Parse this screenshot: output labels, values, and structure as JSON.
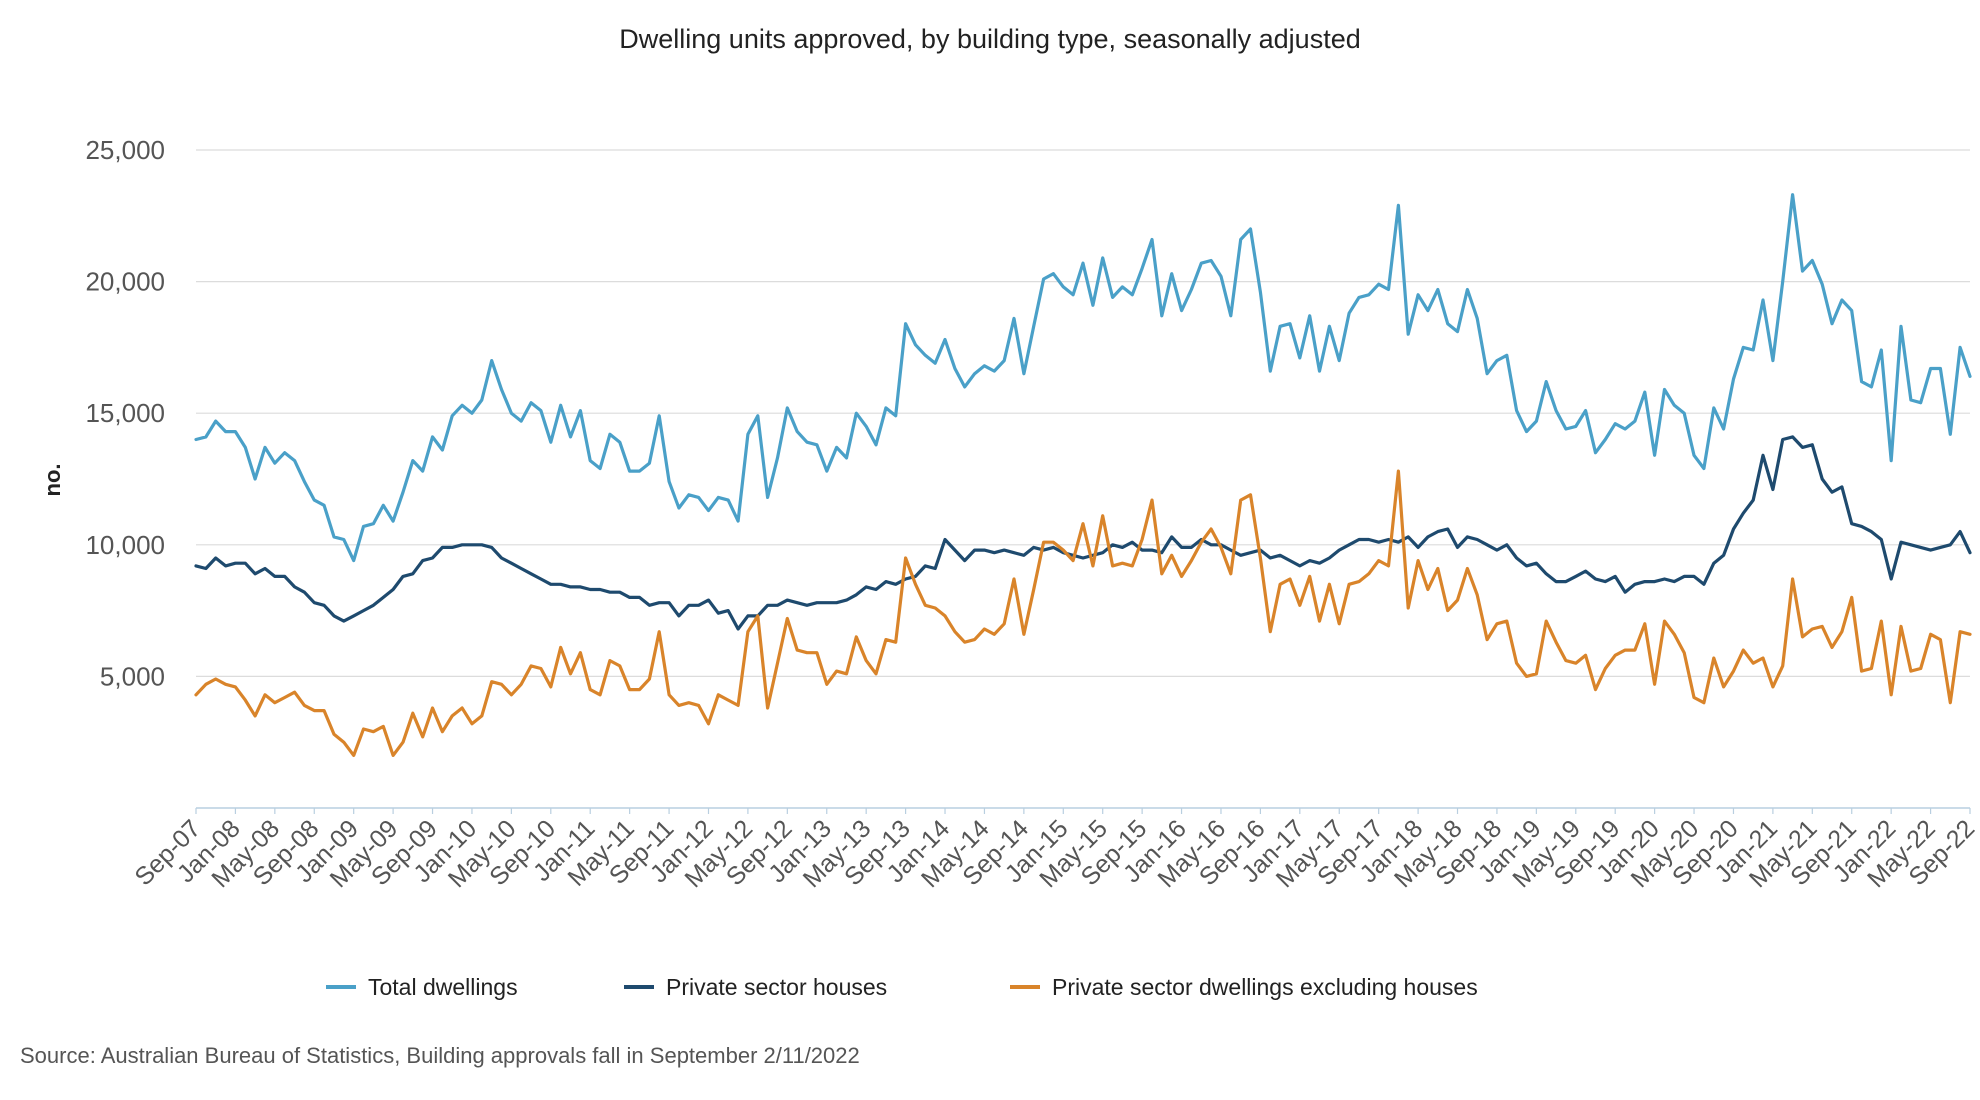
{
  "chart_data": {
    "type": "line",
    "title": "Dwelling units approved, by building type, seasonally adjusted",
    "ylabel": "no.",
    "xlabel": "",
    "ylim": [
      0,
      25000
    ],
    "yticks": [
      5000,
      10000,
      15000,
      20000,
      25000
    ],
    "ytick_labels": [
      "5,000",
      "10,000",
      "15,000",
      "20,000",
      "25,000"
    ],
    "x_start": "Sep-07",
    "x_end": "Sep-22",
    "xtick_labels": [
      "Sep-07",
      "Jan-08",
      "May-08",
      "Sep-08",
      "Jan-09",
      "May-09",
      "Sep-09",
      "Jan-10",
      "May-10",
      "Sep-10",
      "Jan-11",
      "May-11",
      "Sep-11",
      "Jan-12",
      "May-12",
      "Sep-12",
      "Jan-13",
      "May-13",
      "Sep-13",
      "Jan-14",
      "May-14",
      "Sep-14",
      "Jan-15",
      "May-15",
      "Sep-15",
      "Jan-16",
      "May-16",
      "Sep-16",
      "Jan-17",
      "May-17",
      "Sep-17",
      "Jan-18",
      "May-18",
      "Sep-18",
      "Jan-19",
      "May-19",
      "Sep-19",
      "Jan-20",
      "May-20",
      "Sep-20",
      "Jan-21",
      "May-21",
      "Sep-21",
      "Jan-22",
      "May-22",
      "Sep-22"
    ],
    "grid": true,
    "legend_position": "bottom",
    "series": [
      {
        "name": "Total dwellings",
        "color": "#4aa0c8",
        "values": [
          14000,
          14100,
          14700,
          14300,
          14300,
          13700,
          12500,
          13700,
          13100,
          13500,
          13200,
          12400,
          11700,
          11500,
          10300,
          10200,
          9400,
          10700,
          10800,
          11500,
          10900,
          12000,
          13200,
          12800,
          14100,
          13600,
          14900,
          15300,
          15000,
          15500,
          17000,
          15900,
          15000,
          14700,
          15400,
          15100,
          13900,
          15300,
          14100,
          15100,
          13200,
          12900,
          14200,
          13900,
          12800,
          12800,
          13100,
          14900,
          12400,
          11400,
          11900,
          11800,
          11300,
          11800,
          11700,
          10900,
          14200,
          14900,
          11800,
          13300,
          15200,
          14300,
          13900,
          13800,
          12800,
          13700,
          13300,
          15000,
          14500,
          13800,
          15200,
          14900,
          18400,
          17600,
          17200,
          16900,
          17800,
          16700,
          16000,
          16500,
          16800,
          16600,
          17000,
          18600,
          16500,
          18300,
          20100,
          20300,
          19800,
          19500,
          20700,
          19100,
          20900,
          19400,
          19800,
          19500,
          20500,
          21600,
          18700,
          20300,
          18900,
          19700,
          20700,
          20800,
          20200,
          18700,
          21600,
          22000,
          19600,
          16600,
          18300,
          18400,
          17100,
          18700,
          16600,
          18300,
          17000,
          18800,
          19400,
          19500,
          19900,
          19700,
          22900,
          18000,
          19500,
          18900,
          19700,
          18400,
          18100,
          19700,
          18600,
          16500,
          17000,
          17200,
          15100,
          14300,
          14700,
          16200,
          15100,
          14400,
          14500,
          15100,
          13500,
          14000,
          14600,
          14400,
          14700,
          15800,
          13400,
          15900,
          15300,
          15000,
          13400,
          12900,
          15200,
          14400,
          16300,
          17500,
          17400,
          19300,
          17000,
          20000,
          23300,
          20400,
          20800,
          19900,
          18400,
          19300,
          18900,
          16200,
          16000,
          17400,
          13200,
          18300,
          15500,
          15400,
          16700,
          16700,
          14200,
          17500,
          16400
        ]
      },
      {
        "name": "Private sector houses",
        "color": "#1e4a6e",
        "values": [
          9200,
          9100,
          9500,
          9200,
          9300,
          9300,
          8900,
          9100,
          8800,
          8800,
          8400,
          8200,
          7800,
          7700,
          7300,
          7100,
          7300,
          7500,
          7700,
          8000,
          8300,
          8800,
          8900,
          9400,
          9500,
          9900,
          9900,
          10000,
          10000,
          10000,
          9900,
          9500,
          9300,
          9100,
          8900,
          8700,
          8500,
          8500,
          8400,
          8400,
          8300,
          8300,
          8200,
          8200,
          8000,
          8000,
          7700,
          7800,
          7800,
          7300,
          7700,
          7700,
          7900,
          7400,
          7500,
          6800,
          7300,
          7300,
          7700,
          7700,
          7900,
          7800,
          7700,
          7800,
          7800,
          7800,
          7900,
          8100,
          8400,
          8300,
          8600,
          8500,
          8700,
          8800,
          9200,
          9100,
          10200,
          9800,
          9400,
          9800,
          9800,
          9700,
          9800,
          9700,
          9600,
          9900,
          9800,
          9900,
          9700,
          9600,
          9500,
          9600,
          9700,
          10000,
          9900,
          10100,
          9800,
          9800,
          9700,
          10300,
          9900,
          9900,
          10200,
          10000,
          10000,
          9800,
          9600,
          9700,
          9800,
          9500,
          9600,
          9400,
          9200,
          9400,
          9300,
          9500,
          9800,
          10000,
          10200,
          10200,
          10100,
          10200,
          10100,
          10300,
          9900,
          10300,
          10500,
          10600,
          9900,
          10300,
          10200,
          10000,
          9800,
          10000,
          9500,
          9200,
          9300,
          8900,
          8600,
          8600,
          8800,
          9000,
          8700,
          8600,
          8800,
          8200,
          8500,
          8600,
          8600,
          8700,
          8600,
          8800,
          8800,
          8500,
          9300,
          9600,
          10600,
          11200,
          11700,
          13400,
          12100,
          14000,
          14100,
          13700,
          13800,
          12500,
          12000,
          12200,
          10800,
          10700,
          10500,
          10200,
          8700,
          10100,
          10000,
          9900,
          9800,
          9900,
          10000,
          10500,
          9700
        ]
      },
      {
        "name": "Private sector dwellings excluding houses",
        "color": "#d9842a",
        "values": [
          4300,
          4700,
          4900,
          4700,
          4600,
          4100,
          3500,
          4300,
          4000,
          4200,
          4400,
          3900,
          3700,
          3700,
          2800,
          2500,
          2000,
          3000,
          2900,
          3100,
          2000,
          2500,
          3600,
          2700,
          3800,
          2900,
          3500,
          3800,
          3200,
          3500,
          4800,
          4700,
          4300,
          4700,
          5400,
          5300,
          4600,
          6100,
          5100,
          5900,
          4500,
          4300,
          5600,
          5400,
          4500,
          4500,
          4900,
          6700,
          4300,
          3900,
          4000,
          3900,
          3200,
          4300,
          4100,
          3900,
          6700,
          7300,
          3800,
          5500,
          7200,
          6000,
          5900,
          5900,
          4700,
          5200,
          5100,
          6500,
          5600,
          5100,
          6400,
          6300,
          9500,
          8500,
          7700,
          7600,
          7300,
          6700,
          6300,
          6400,
          6800,
          6600,
          7000,
          8700,
          6600,
          8300,
          10100,
          10100,
          9800,
          9400,
          10800,
          9200,
          11100,
          9200,
          9300,
          9200,
          10200,
          11700,
          8900,
          9600,
          8800,
          9400,
          10100,
          10600,
          9900,
          8900,
          11700,
          11900,
          9500,
          6700,
          8500,
          8700,
          7700,
          8800,
          7100,
          8500,
          7000,
          8500,
          8600,
          8900,
          9400,
          9200,
          12800,
          7600,
          9400,
          8300,
          9100,
          7500,
          7900,
          9100,
          8100,
          6400,
          7000,
          7100,
          5500,
          5000,
          5100,
          7100,
          6300,
          5600,
          5500,
          5800,
          4500,
          5300,
          5800,
          6000,
          6000,
          7000,
          4700,
          7100,
          6600,
          5900,
          4200,
          4000,
          5700,
          4600,
          5200,
          6000,
          5500,
          5700,
          4600,
          5400,
          8700,
          6500,
          6800,
          6900,
          6100,
          6700,
          8000,
          5200,
          5300,
          7100,
          4300,
          6900,
          5200,
          5300,
          6600,
          6400,
          4000,
          6700,
          6600
        ]
      }
    ],
    "source": "Source: Australian Bureau of Statistics, Building approvals fall in September 2/11/2022"
  }
}
